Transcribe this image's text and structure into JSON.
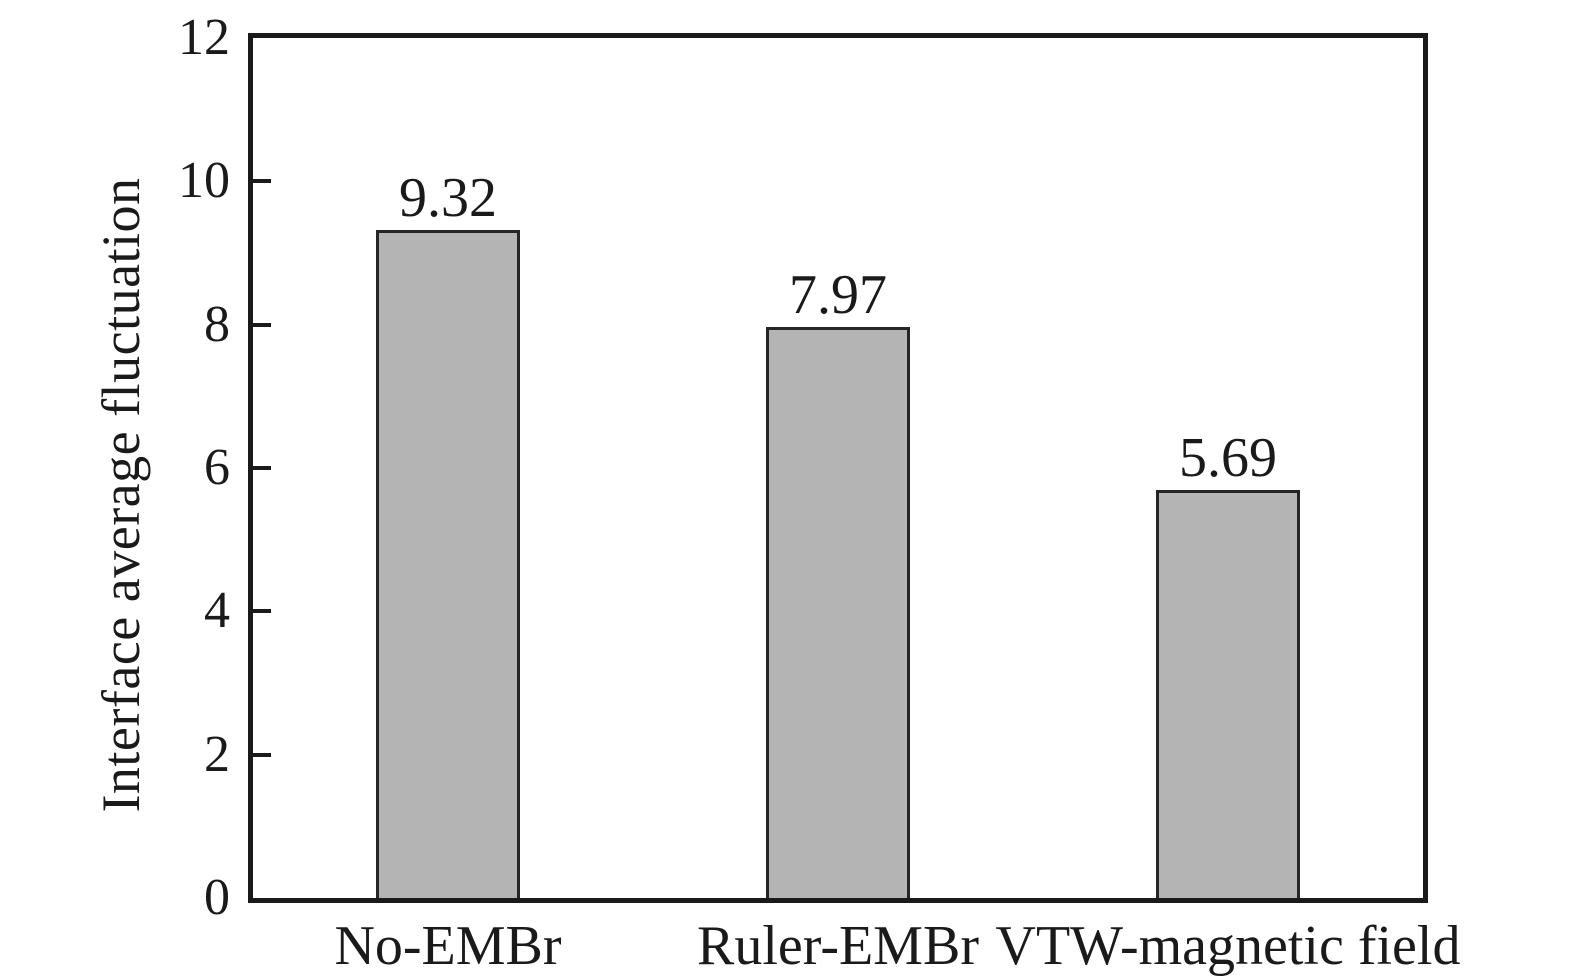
{
  "chart_data": {
    "type": "bar",
    "title": "",
    "xlabel": "",
    "ylabel": "Interface average fluctuation",
    "categories": [
      "No-EMBr",
      "Ruler-EMBr",
      "VTW-magnetic field"
    ],
    "values": [
      9.32,
      7.97,
      5.69
    ],
    "value_labels": [
      "9.32",
      "7.97",
      "5.69"
    ],
    "ylim": [
      0,
      12
    ],
    "yticks": [
      0,
      2,
      4,
      6,
      8,
      10,
      12
    ],
    "grid": false,
    "legend": "none",
    "bar_fill_color": "#b4b4b4",
    "bar_border_color": "#262626",
    "frame_color": "#1a1a1a",
    "text_color": "#1a1a1a",
    "background_color": "#ffffff"
  }
}
